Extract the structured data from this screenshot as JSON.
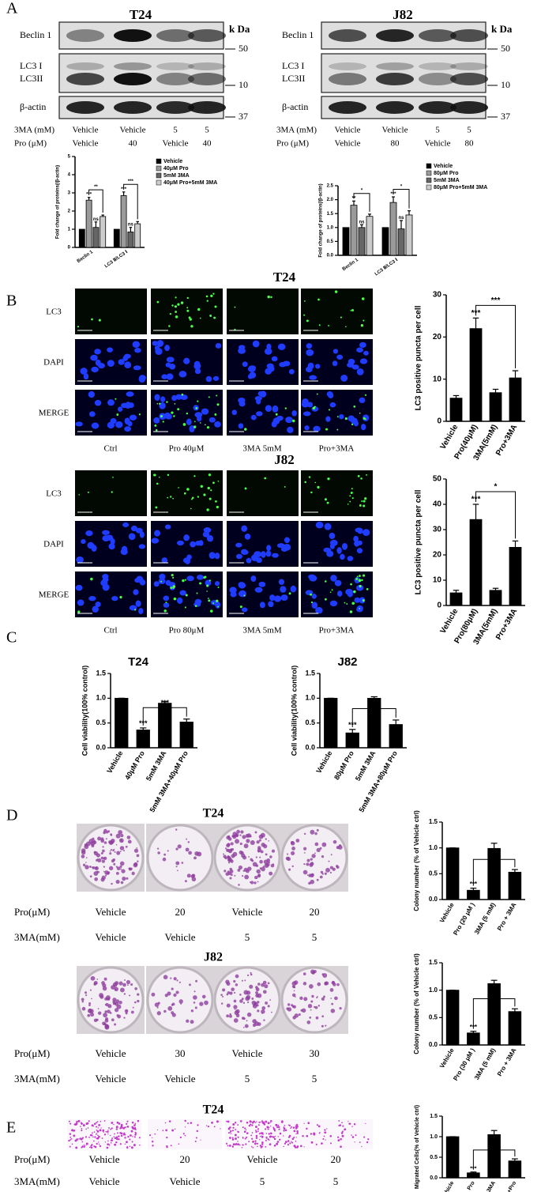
{
  "figure": {
    "panels": [
      "A",
      "B",
      "C",
      "D",
      "E"
    ],
    "blots": [
      {
        "title": "T24",
        "unit": "k Da",
        "rows": [
          "Beclin 1",
          "LC3 I",
          "LC3II",
          "β-actin"
        ],
        "markers": [
          50,
          10,
          37
        ],
        "treatments": [
          {
            "label": "3MA (mM)",
            "values": [
              "Vehicle",
              "Vehicle",
              5,
              5
            ]
          },
          {
            "label": "Pro (μM)",
            "values": [
              "Vehicle",
              40,
              "Vehicle",
              40
            ]
          }
        ]
      },
      {
        "title": "J82",
        "unit": "k Da",
        "rows": [
          "Beclin 1",
          "LC3 I",
          "LC3II",
          "β-actin"
        ],
        "markers": [
          50,
          10,
          37
        ],
        "treatments": [
          {
            "label": "3MA (mM)",
            "values": [
              "Vehicle",
              "Vehicle",
              5,
              5
            ]
          },
          {
            "label": "Pro (μM)",
            "values": [
              "Vehicle",
              80,
              "Vehicle",
              80
            ]
          }
        ]
      }
    ],
    "microscopy": [
      {
        "title": "T24",
        "rows": [
          "LC3",
          "DAPI",
          "MERGE"
        ],
        "columns": [
          "Ctrl",
          "Pro 40μM",
          "3MA 5mM",
          "Pro+3MA"
        ]
      },
      {
        "title": "J82",
        "rows": [
          "LC3",
          "DAPI",
          "MERGE"
        ],
        "columns": [
          "Ctrl",
          "Pro 80μM",
          "3MA 5mM",
          "Pro+3MA"
        ]
      }
    ],
    "colony": [
      {
        "title": "T24",
        "rows": [
          {
            "label": "Pro(μM)",
            "values": [
              "Vehicle",
              20,
              "Vehicle",
              20
            ]
          },
          {
            "label": "3MA(mM)",
            "values": [
              "Vehicle",
              "Vehicle",
              5,
              5
            ]
          }
        ]
      },
      {
        "title": "J82",
        "rows": [
          {
            "label": "Pro(μM)",
            "values": [
              "Vehicle",
              30,
              "Vehicle",
              30
            ]
          },
          {
            "label": "3MA(mM)",
            "values": [
              "Vehicle",
              "Vehicle",
              5,
              5
            ]
          }
        ]
      }
    ],
    "migration": {
      "title": "T24",
      "rows": [
        {
          "label": "Pro(μM)",
          "values": [
            "Vehicle",
            20,
            "Vehicle",
            20
          ]
        },
        {
          "label": "3MA(mM)",
          "values": [
            "Vehicle",
            "Vehicle",
            5,
            5
          ]
        }
      ]
    }
  },
  "chart_data": [
    {
      "type": "bar",
      "ylabel": "Fold change of proteins(/β-actin)",
      "categories": [
        "Beclin 1",
        "LC3 Ⅱ/LC3 Ⅰ"
      ],
      "series": [
        {
          "name": "Vehicle",
          "color": "#000000",
          "values": [
            1,
            1
          ]
        },
        {
          "name": "40μM Pro",
          "color": "#9a9a9a",
          "values": [
            2.6,
            2.85
          ],
          "errors": [
            0.15,
            0.2
          ],
          "significance": [
            "***",
            "***"
          ]
        },
        {
          "name": "5mM 3MA",
          "color": "#666666",
          "values": [
            1.1,
            0.85
          ],
          "errors": [
            0.3,
            0.25
          ],
          "significance": [
            "ns",
            "ns"
          ]
        },
        {
          "name": "40μM Pro+5mM 3MA",
          "color": "#cccccc",
          "values": [
            1.7,
            1.3
          ],
          "errors": [
            0.08,
            0.12
          ]
        }
      ],
      "brackets": [
        "**",
        "***"
      ],
      "ylim": [
        0,
        5
      ],
      "yticks": [
        0,
        1,
        2,
        3,
        4,
        5
      ]
    },
    {
      "type": "bar",
      "ylabel": "Fold change of proteins(/β-actin)",
      "categories": [
        "Beclin 1",
        "LC3 Ⅱ/LC3 Ⅰ"
      ],
      "series": [
        {
          "name": "Vehicle",
          "color": "#000000",
          "values": [
            1,
            1
          ]
        },
        {
          "name": "80μM Pro",
          "color": "#9a9a9a",
          "values": [
            1.8,
            1.9
          ],
          "errors": [
            0.15,
            0.2
          ],
          "significance": [
            "**",
            "***"
          ]
        },
        {
          "name": "5mM 3MA",
          "color": "#666666",
          "values": [
            1.0,
            0.95
          ],
          "errors": [
            0.1,
            0.3
          ],
          "significance": [
            "ns",
            "ns"
          ]
        },
        {
          "name": "80μM Pro+5mM 3MA",
          "color": "#cccccc",
          "values": [
            1.4,
            1.45
          ],
          "errors": [
            0.08,
            0.15
          ]
        }
      ],
      "brackets": [
        "*",
        "*"
      ],
      "ylim": [
        0,
        2.5
      ],
      "yticks": [
        {
          "value": 0,
          "label": "0.0"
        },
        0.5,
        {
          "value": 1,
          "label": "1.0"
        },
        1.5,
        {
          "value": 2,
          "label": "2.0"
        },
        2.5
      ]
    },
    {
      "type": "bar",
      "ylabel": "LC3 positive puncta per cell",
      "categories": [
        "Vehicle",
        "Pro(40μM)",
        "3MA(5mM)",
        "Pro+3MA"
      ],
      "values": [
        5.5,
        22,
        6.8,
        10.3
      ],
      "errors": [
        0.6,
        2.5,
        0.8,
        1.7
      ],
      "significance": [
        null,
        "***",
        null,
        null
      ],
      "bracket": "***",
      "color": "#000000",
      "ylim": [
        0,
        30
      ],
      "yticks": [
        0,
        10,
        20,
        30
      ]
    },
    {
      "type": "bar",
      "ylabel": "LC3 positive puncta per cell",
      "categories": [
        "Vehicle",
        "Pro(80μM)",
        "3MA(5mM)",
        "Pro+3MA"
      ],
      "values": [
        5,
        34,
        6,
        23
      ],
      "errors": [
        1,
        6,
        0.8,
        2.5
      ],
      "significance": [
        null,
        "***",
        null,
        null
      ],
      "bracket": "*",
      "color": "#000000",
      "ylim": [
        0,
        50
      ],
      "yticks": [
        0,
        10,
        20,
        30,
        40,
        50
      ]
    },
    {
      "type": "bar",
      "title": "T24",
      "ylabel": "Cell viability(100% control)",
      "categories": [
        "Vehicle",
        "40μM Pro",
        "5mM 3MA",
        "5mM 3MA+40μM Pro"
      ],
      "values": [
        1.0,
        0.36,
        0.9,
        0.52
      ],
      "errors": [
        0,
        0.04,
        0.03,
        0.06
      ],
      "significance": [
        null,
        "***",
        null,
        null
      ],
      "bracket": "***",
      "color": "#000000",
      "ylim": [
        0,
        1.5
      ],
      "yticks": [
        {
          "value": 0,
          "label": "0.0"
        },
        0.5,
        {
          "value": 1,
          "label": "1.0"
        },
        1.5
      ]
    },
    {
      "type": "bar",
      "title": "J82",
      "ylabel": "Cell viability(100% control)",
      "categories": [
        "Vehicle",
        "80μM Pro",
        "5mM 3MA",
        "5mM 3MA+80μM Pro"
      ],
      "values": [
        1.0,
        0.3,
        1.0,
        0.47
      ],
      "errors": [
        0,
        0.07,
        0.03,
        0.09
      ],
      "significance": [
        null,
        "***",
        null,
        null
      ],
      "bracket": "*",
      "color": "#000000",
      "ylim": [
        0,
        1.5
      ],
      "yticks": [
        {
          "value": 0,
          "label": "0.0"
        },
        0.5,
        {
          "value": 1,
          "label": "1.0"
        },
        1.5
      ]
    },
    {
      "type": "bar",
      "ylabel": "Colony number (% of Vehicle ctrl)",
      "categories": [
        "Vehicle",
        "Pro (20 μM )",
        "3MA (5 mM)",
        "Pro + 3MA"
      ],
      "values": [
        1.0,
        0.18,
        0.99,
        0.53
      ],
      "errors": [
        0,
        0.04,
        0.1,
        0.05
      ],
      "significance": [
        null,
        "***",
        null,
        null
      ],
      "bracket": "***",
      "color": "#000000",
      "ylim": [
        0,
        1.5
      ],
      "yticks": [
        {
          "value": 0,
          "label": "0.0"
        },
        0.5,
        {
          "value": 1,
          "label": "1.0"
        },
        1.5
      ]
    },
    {
      "type": "bar",
      "ylabel": "Colony number (% of Vehicle ctrl)",
      "categories": [
        "Vehicle",
        "Pro (30 μM )",
        "3MA (5 mM)",
        "Pro + 3MA"
      ],
      "values": [
        1.0,
        0.22,
        1.12,
        0.61
      ],
      "errors": [
        0,
        0.03,
        0.06,
        0.05
      ],
      "significance": [
        null,
        "***",
        null,
        null
      ],
      "bracket": "***",
      "color": "#000000",
      "ylim": [
        0,
        1.5
      ],
      "yticks": [
        {
          "value": 0,
          "label": "0.0"
        },
        0.5,
        {
          "value": 1,
          "label": "1.0"
        },
        1.5
      ]
    },
    {
      "type": "bar",
      "ylabel": "Migrated Cells(% of Vehicle ctrl)",
      "categories": [
        "Vehicle",
        "Pro",
        "3MA",
        "3MA+Pro"
      ],
      "values": [
        1.0,
        0.12,
        1.05,
        0.41
      ],
      "errors": [
        0,
        0.02,
        0.1,
        0.05
      ],
      "significance": [
        null,
        "***",
        null,
        null
      ],
      "bracket": "***",
      "color": "#000000",
      "ylim": [
        0,
        1.5
      ],
      "yticks": [
        {
          "value": 0,
          "label": "0.0"
        },
        0.5,
        {
          "value": 1,
          "label": "1.0"
        },
        1.5
      ]
    }
  ]
}
